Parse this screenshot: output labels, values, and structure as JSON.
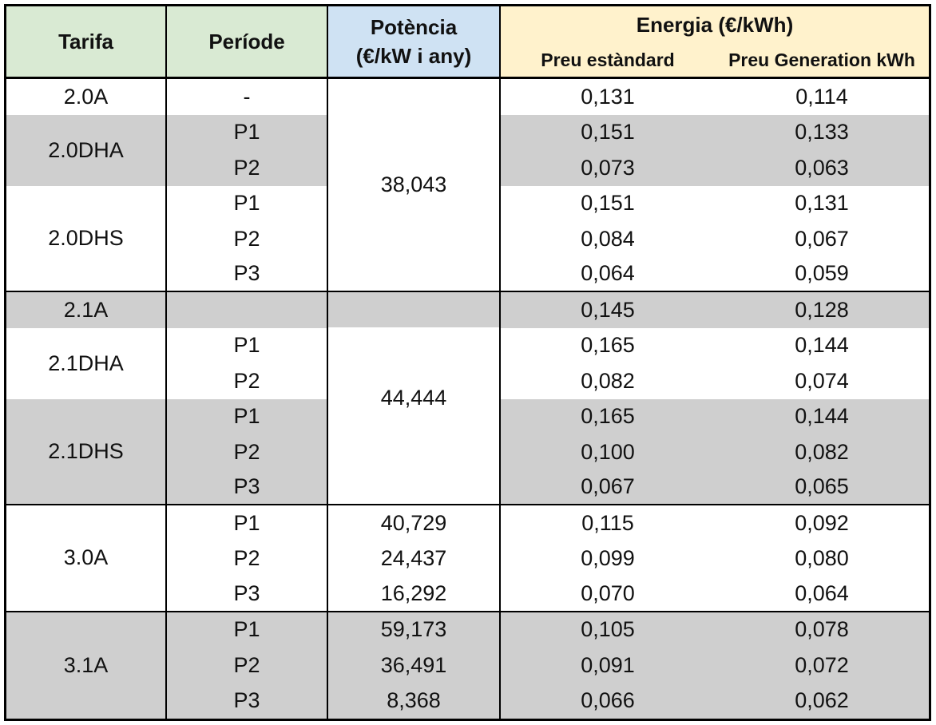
{
  "header": {
    "tarifa": "Tarifa",
    "periode": "Període",
    "potencia_line1": "Potència",
    "potencia_line2": "(€/kW i any)",
    "energia": "Energia (€/kWh)",
    "preu_estandard": "Preu estàndard",
    "preu_generation": "Preu Generation kWh"
  },
  "groups": [
    {
      "tarifa": "2.0A",
      "shade": "w",
      "periods": [
        "-"
      ],
      "estandard": [
        "0,131"
      ],
      "generation": [
        "0,114"
      ]
    },
    {
      "tarifa": "2.0DHA",
      "shade": "g",
      "periods": [
        "P1",
        "P2"
      ],
      "estandard": [
        "0,151",
        "0,073"
      ],
      "generation": [
        "0,133",
        "0,063"
      ]
    },
    {
      "tarifa": "2.0DHS",
      "shade": "w",
      "periods": [
        "P1",
        "P2",
        "P3"
      ],
      "estandard": [
        "0,151",
        "0,084",
        "0,064"
      ],
      "generation": [
        "0,131",
        "0,067",
        "0,059"
      ]
    },
    {
      "tarifa": "2.1A",
      "shade": "g",
      "periods": [
        ""
      ],
      "estandard": [
        "0,145"
      ],
      "generation": [
        "0,128"
      ]
    },
    {
      "tarifa": "2.1DHA",
      "shade": "w",
      "periods": [
        "P1",
        "P2"
      ],
      "estandard": [
        "0,165",
        "0,082"
      ],
      "generation": [
        "0,144",
        "0,074"
      ]
    },
    {
      "tarifa": "2.1DHS",
      "shade": "g",
      "periods": [
        "P1",
        "P2",
        "P3"
      ],
      "estandard": [
        "0,165",
        "0,100",
        "0,067"
      ],
      "generation": [
        "0,144",
        "0,082",
        "0,065"
      ]
    },
    {
      "tarifa": "3.0A",
      "shade": "w",
      "periods": [
        "P1",
        "P2",
        "P3"
      ],
      "potencia": [
        "40,729",
        "24,437",
        "16,292"
      ],
      "estandard": [
        "0,115",
        "0,099",
        "0,070"
      ],
      "generation": [
        "0,092",
        "0,080",
        "0,064"
      ]
    },
    {
      "tarifa": "3.1A",
      "shade": "g",
      "periods": [
        "P1",
        "P2",
        "P3"
      ],
      "potencia": [
        "59,173",
        "36,491",
        "8,368"
      ],
      "estandard": [
        "0,105",
        "0,091",
        "0,066"
      ],
      "generation": [
        "0,078",
        "0,072",
        "0,062"
      ]
    }
  ],
  "merged_potencia": {
    "block_20": "38,043",
    "block_21": "44,444"
  },
  "colors": {
    "header_tarifa": "#d9ead3",
    "header_potencia": "#cfe2f3",
    "header_energia": "#fff2cc",
    "row_shade": "#cfcfcf"
  }
}
